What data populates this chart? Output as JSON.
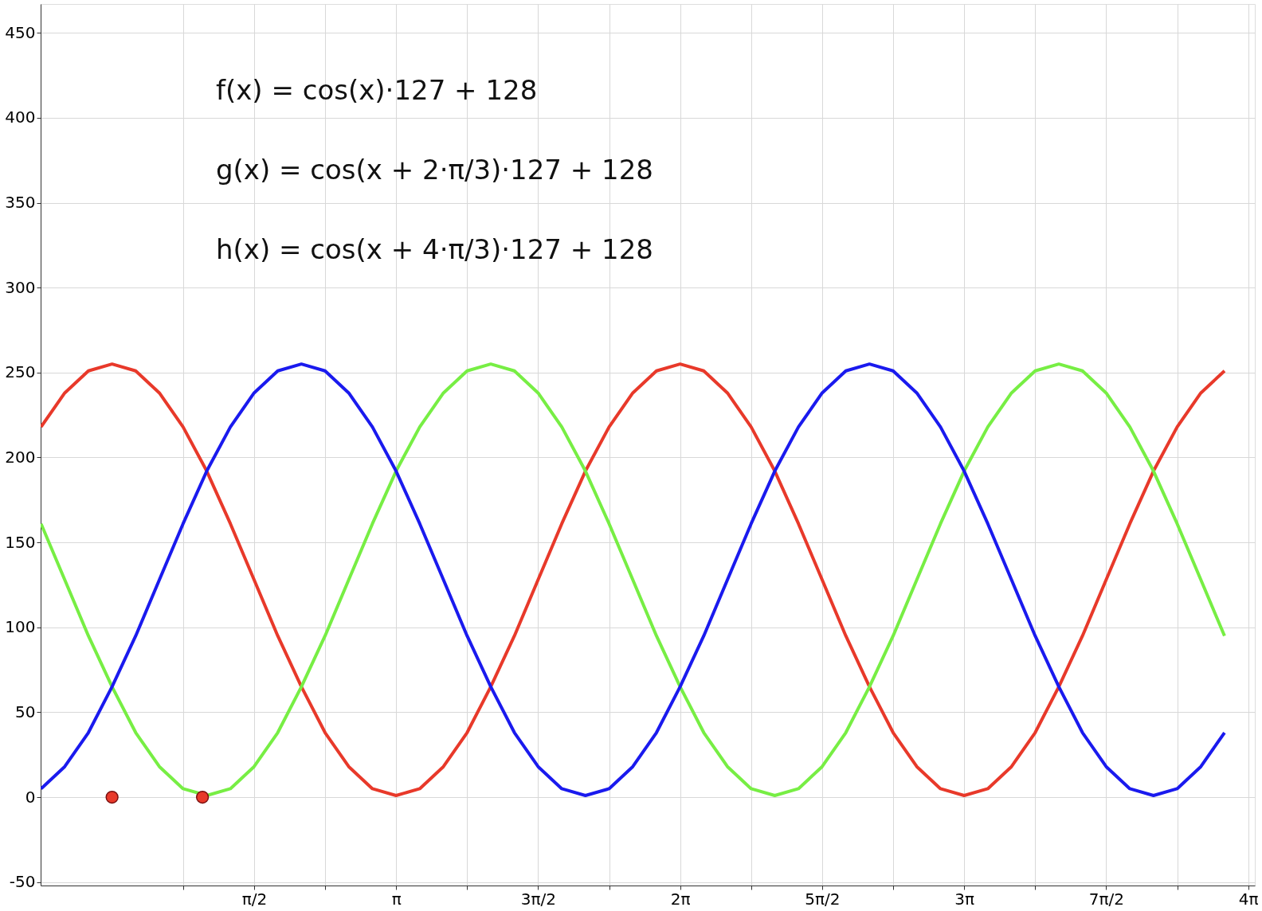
{
  "chart_data": {
    "type": "line",
    "xlim": [
      -0.79,
      12.64
    ],
    "ylim": [
      -52,
      467
    ],
    "yticks": [
      -50,
      0,
      50,
      100,
      150,
      200,
      250,
      300,
      350,
      400,
      450
    ],
    "xticks": [
      {
        "value": 0.7854,
        "label": null
      },
      {
        "value": 1.5708,
        "label": "π/2"
      },
      {
        "value": 2.3562,
        "label": null
      },
      {
        "value": 3.1416,
        "label": "π"
      },
      {
        "value": 3.927,
        "label": null
      },
      {
        "value": 4.7124,
        "label": "3π/2"
      },
      {
        "value": 5.4978,
        "label": null
      },
      {
        "value": 6.2832,
        "label": "2π"
      },
      {
        "value": 7.0686,
        "label": null
      },
      {
        "value": 7.854,
        "label": "5π/2"
      },
      {
        "value": 8.6394,
        "label": null
      },
      {
        "value": 9.4248,
        "label": "3π"
      },
      {
        "value": 10.2102,
        "label": null
      },
      {
        "value": 10.9956,
        "label": "7π/2"
      },
      {
        "value": 11.781,
        "label": null
      },
      {
        "value": 12.5664,
        "label": "4π"
      }
    ],
    "x": [
      -0.7854,
      -0.5236,
      -0.2618,
      0,
      0.2618,
      0.5236,
      0.7854,
      1.0472,
      1.309,
      1.5708,
      1.8326,
      2.0944,
      2.3562,
      2.618,
      2.8798,
      3.1416,
      3.4034,
      3.6652,
      3.927,
      4.1888,
      4.4506,
      4.7124,
      4.9742,
      5.236,
      5.4978,
      5.7596,
      6.0214,
      6.2832,
      6.545,
      6.8068,
      7.0686,
      7.3304,
      7.5922,
      7.854,
      8.1158,
      8.3776,
      8.6394,
      8.9012,
      9.163,
      9.4248,
      9.6866,
      9.9484,
      10.2102,
      10.472,
      10.7338,
      10.9956,
      11.2574,
      11.5192,
      11.781,
      12.0428,
      12.3046
    ],
    "series": [
      {
        "color": "#e8392a",
        "values": [
          218,
          238,
          251,
          255,
          251,
          238,
          218,
          192,
          161,
          128,
          95,
          65,
          38,
          18,
          5,
          1,
          5,
          18,
          38,
          65,
          95,
          128,
          161,
          192,
          218,
          238,
          251,
          255,
          251,
          238,
          218,
          192,
          161,
          128,
          95,
          65,
          38,
          18,
          5,
          1,
          5,
          18,
          38,
          65,
          95,
          128,
          161,
          192,
          218,
          238,
          251
        ]
      },
      {
        "color": "#77ee44",
        "values": [
          161,
          128,
          95,
          65,
          38,
          18,
          5,
          1,
          5,
          18,
          38,
          65,
          95,
          128,
          161,
          192,
          218,
          238,
          251,
          255,
          251,
          238,
          218,
          192,
          161,
          128,
          95,
          65,
          38,
          18,
          5,
          1,
          5,
          18,
          38,
          65,
          95,
          128,
          161,
          192,
          218,
          238,
          251,
          255,
          251,
          238,
          218,
          192,
          161,
          128,
          95
        ]
      },
      {
        "color": "#1a1aee",
        "values": [
          5,
          18,
          38,
          65,
          95,
          128,
          161,
          192,
          218,
          238,
          251,
          255,
          251,
          238,
          218,
          192,
          161,
          128,
          95,
          65,
          38,
          18,
          5,
          1,
          5,
          18,
          38,
          65,
          95,
          128,
          161,
          192,
          218,
          238,
          251,
          255,
          251,
          238,
          218,
          192,
          161,
          128,
          95,
          65,
          38,
          18,
          5,
          1,
          5,
          18,
          38
        ]
      },
      {
        "type": "scatter",
        "color": "#e8392a",
        "x": [
          0,
          1.0
        ],
        "values": [
          0,
          0
        ],
        "marker": "circle"
      }
    ],
    "grid": true,
    "marker": "none",
    "line_style": "solid",
    "annotations": [
      "f(x) = cos(x)·127 + 128",
      "g(x) = cos(x + 2·π/3)·127 + 128",
      "h(x) = cos(x + 4·π/3)·127 + 128"
    ]
  }
}
